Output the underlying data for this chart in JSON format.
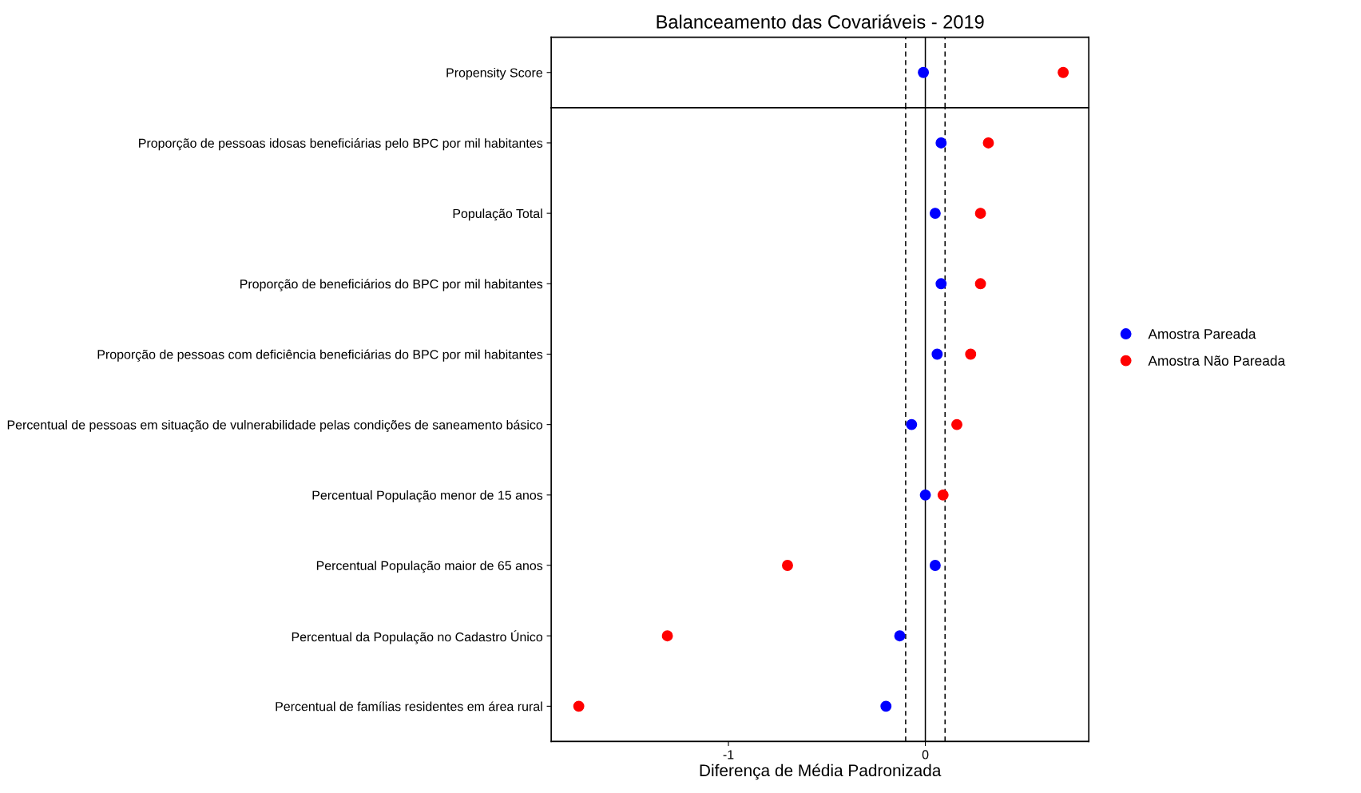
{
  "chart_data": [
    {
      "type": "scatter",
      "title": "Balanceamento das Covariáveis - 2019",
      "orientation": "horizontal",
      "categories": [
        "Propensity Score"
      ],
      "series": [
        {
          "color": "#0000ff",
          "values": [
            -0.01
          ]
        },
        {
          "color": "#ff0000",
          "values": [
            0.7
          ]
        }
      ],
      "xlim": [
        -1.9,
        0.83
      ],
      "xticks": [
        -1,
        0
      ],
      "tick_labels": "y",
      "grid": false,
      "legend": false,
      "marker": "circle",
      "ref_lines": [
        {
          "axis": "x",
          "value": 0,
          "line_style": "solid",
          "color": "#000000"
        },
        {
          "axis": "x",
          "value": -0.1,
          "line_style": "dashed",
          "color": "#000000"
        },
        {
          "axis": "x",
          "value": 0.1,
          "line_style": "dashed",
          "color": "#000000"
        }
      ]
    },
    {
      "type": "scatter",
      "xlabel": "Diferença de Média Padronizada",
      "orientation": "horizontal",
      "categories": [
        "Proporção de pessoas idosas beneficiárias pelo BPC por mil habitantes",
        "População Total",
        "Proporção de beneficiários do BPC por mil habitantes",
        "Proporção de pessoas com deficiência beneficiárias do BPC por mil habitantes",
        "Percentual de pessoas em situação de vulnerabilidade pelas condições de saneamento básico",
        "Percentual População menor de 15 anos",
        "Percentual População maior de 65 anos",
        "Percentual da População no Cadastro Único",
        "Percentual de famílias residentes em área rural"
      ],
      "series": [
        {
          "name": "Amostra Pareada",
          "color": "#0000ff",
          "values": [
            0.08,
            0.05,
            0.08,
            0.06,
            -0.07,
            0.0,
            0.05,
            -0.13,
            -0.2
          ]
        },
        {
          "name": "Amostra Não Pareada",
          "color": "#ff0000",
          "values": [
            0.32,
            0.28,
            0.28,
            0.23,
            0.16,
            0.09,
            -0.7,
            -1.31,
            -1.76
          ]
        }
      ],
      "xlim": [
        -1.9,
        0.83
      ],
      "xticks": [
        -1,
        0
      ],
      "grid": false,
      "legend": "right",
      "marker": "circle",
      "ref_lines": [
        {
          "axis": "x",
          "value": 0,
          "line_style": "solid",
          "color": "#000000"
        },
        {
          "axis": "x",
          "value": -0.1,
          "line_style": "dashed",
          "color": "#000000"
        },
        {
          "axis": "x",
          "value": 0.1,
          "line_style": "dashed",
          "color": "#000000"
        }
      ]
    }
  ]
}
